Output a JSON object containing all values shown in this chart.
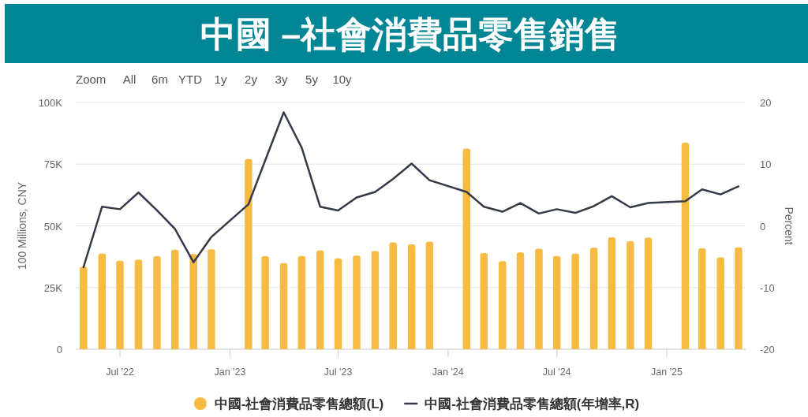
{
  "chart_data": {
    "type": "bar",
    "title": "中國 –社會消費品零售銷售",
    "ylabel": "100 Millions, CNY",
    "y2label": "Percent",
    "annotations": [
      "Zoom",
      "All",
      "6m",
      "YTD",
      "1y",
      "2y",
      "3y",
      "5y",
      "10y"
    ],
    "x": [
      "2022-05",
      "2022-06",
      "2022-07",
      "2022-08",
      "2022-09",
      "2022-10",
      "2022-11",
      "2022-12",
      "2023-02",
      "2023-03",
      "2023-04",
      "2023-05",
      "2023-06",
      "2023-07",
      "2023-08",
      "2023-09",
      "2023-10",
      "2023-11",
      "2023-12",
      "2024-02",
      "2024-03",
      "2024-04",
      "2024-05",
      "2024-06",
      "2024-07",
      "2024-08",
      "2024-09",
      "2024-10",
      "2024-11",
      "2024-12",
      "2025-02",
      "2025-03",
      "2025-04",
      "2025-05"
    ],
    "series": [
      {
        "name": "中國-社會消費品零售總額(L)",
        "color": "#f5bb42",
        "values": [
          33500,
          38700,
          35900,
          36300,
          37700,
          40300,
          38600,
          40500,
          77100,
          37700,
          34900,
          37800,
          40000,
          36800,
          37900,
          39800,
          43300,
          42500,
          43600,
          81300,
          39000,
          35700,
          39200,
          40700,
          37800,
          38700,
          41100,
          45400,
          43800,
          45200,
          83700,
          40900,
          37200,
          41300
        ]
      },
      {
        "name": "中國-社會消費品零售總額(年增率,R)",
        "type": "line",
        "color": "#343a48",
        "axis": "y2",
        "values": [
          -6.7,
          3.1,
          2.7,
          5.4,
          2.5,
          -0.5,
          -5.9,
          -1.8,
          3.5,
          10.6,
          18.4,
          12.7,
          3.1,
          2.5,
          4.6,
          5.5,
          7.6,
          10.1,
          7.4,
          5.5,
          3.1,
          2.3,
          3.7,
          2.0,
          2.7,
          2.1,
          3.2,
          4.8,
          3.0,
          3.7,
          4.0,
          5.9,
          5.1,
          6.4
        ]
      }
    ],
    "xlim": [
      "2022-04-18",
      "2025-05-13"
    ],
    "xticks": [
      {
        "value": "2022-07",
        "label": "Jul '22"
      },
      {
        "value": "2023-01",
        "label": "Jan '23"
      },
      {
        "value": "2023-07",
        "label": "Jul '23"
      },
      {
        "value": "2024-01",
        "label": "Jan '24"
      },
      {
        "value": "2024-07",
        "label": "Jul '24"
      },
      {
        "value": "2025-01",
        "label": "Jan '25"
      }
    ],
    "ylim": [
      0,
      100000
    ],
    "yticks": [
      0,
      {
        "value": 25000,
        "label": "25K"
      },
      {
        "value": 50000,
        "label": "50K"
      },
      {
        "value": 75000,
        "label": "75K"
      },
      {
        "value": 100000,
        "label": "100K"
      }
    ],
    "y2lim": [
      -20,
      20
    ],
    "y2ticks": [
      -20,
      -10,
      0,
      10,
      20
    ],
    "grid": "y",
    "legend": "bottom"
  }
}
